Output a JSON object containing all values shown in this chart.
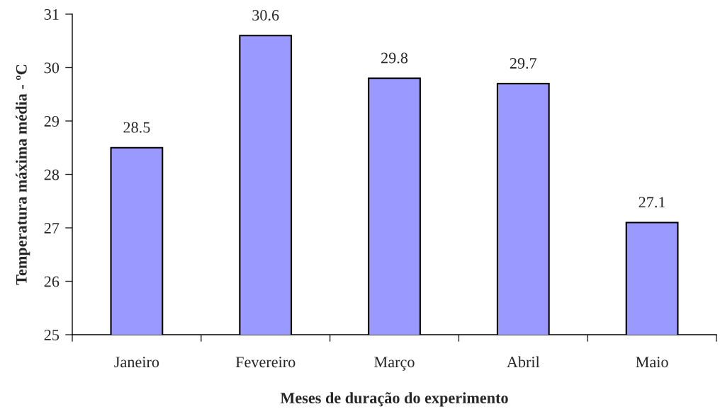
{
  "chart_data": {
    "type": "bar",
    "xlabel": "Meses de duração do experimento",
    "ylabel": "Temperatura máxima média - ºC",
    "categories": [
      "Janeiro",
      "Fevereiro",
      "Março",
      "Abril",
      "Maio"
    ],
    "values": [
      28.5,
      30.6,
      29.8,
      29.7,
      27.1
    ],
    "color": "#9999ff",
    "ylim": [
      25,
      31
    ],
    "yticks": [
      25,
      26,
      27,
      28,
      29,
      30,
      31
    ],
    "grid": false,
    "data_labels": true
  }
}
